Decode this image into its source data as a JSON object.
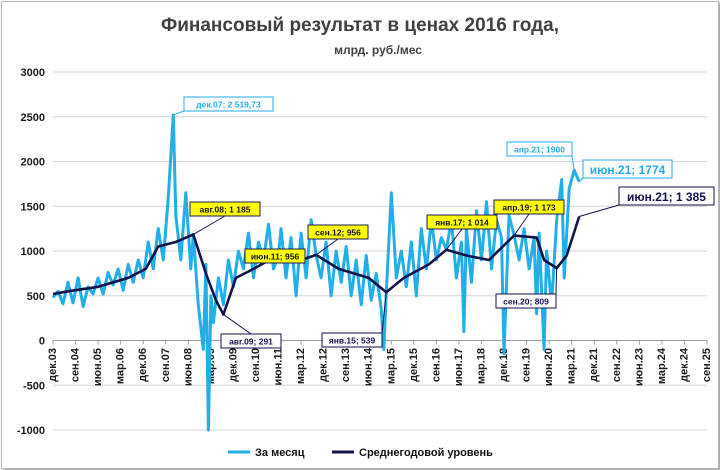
{
  "chart_data": {
    "type": "line",
    "title": "Финансовый результат в ценах 2016 года,",
    "subtitle": "млрд. руб./мес",
    "ylim": [
      -1000,
      3000
    ],
    "y_ticks": [
      "-1000",
      "-500",
      "0",
      "500",
      "1000",
      "1500",
      "2000",
      "2500",
      "3000"
    ],
    "x_tick_labels": [
      "дек.03",
      "сен.04",
      "июн.05",
      "мар.06",
      "дек.06",
      "сен.07",
      "июн.08",
      "мар.09",
      "дек.09",
      "сен.10",
      "июн.11",
      "мар.12",
      "дек.12",
      "сен.13",
      "июн.14",
      "мар.15",
      "дек.15",
      "сен.16",
      "июн.17",
      "мар.18",
      "дек.18",
      "сен.19",
      "июн.20",
      "мар.21",
      "дек.21",
      "сен.22",
      "июн.23",
      "мар.24",
      "дек.24",
      "сен.25"
    ],
    "x_range": [
      "2003-12",
      "2025-09"
    ],
    "grid": true,
    "legend_position": "bottom",
    "series": [
      {
        "name": "За месяц",
        "color": "#22aee6",
        "points": [
          [
            "2003-12",
            480
          ],
          [
            "2004-02",
            550
          ],
          [
            "2004-04",
            410
          ],
          [
            "2004-06",
            650
          ],
          [
            "2004-08",
            420
          ],
          [
            "2004-10",
            700
          ],
          [
            "2004-12",
            380
          ],
          [
            "2005-02",
            600
          ],
          [
            "2005-04",
            520
          ],
          [
            "2005-06",
            700
          ],
          [
            "2005-08",
            520
          ],
          [
            "2005-10",
            760
          ],
          [
            "2005-12",
            620
          ],
          [
            "2006-02",
            800
          ],
          [
            "2006-04",
            560
          ],
          [
            "2006-06",
            850
          ],
          [
            "2006-08",
            650
          ],
          [
            "2006-10",
            900
          ],
          [
            "2006-12",
            700
          ],
          [
            "2007-02",
            1100
          ],
          [
            "2007-04",
            800
          ],
          [
            "2007-06",
            1250
          ],
          [
            "2007-08",
            900
          ],
          [
            "2007-10",
            1600
          ],
          [
            "2007-12",
            2520
          ],
          [
            "2008-01",
            1400
          ],
          [
            "2008-03",
            900
          ],
          [
            "2008-05",
            1650
          ],
          [
            "2008-07",
            800
          ],
          [
            "2008-08",
            1185
          ],
          [
            "2008-10",
            400
          ],
          [
            "2008-12",
            -100
          ],
          [
            "2009-01",
            850
          ],
          [
            "2009-02",
            -1000
          ],
          [
            "2009-03",
            500
          ],
          [
            "2009-04",
            200
          ],
          [
            "2009-06",
            700
          ],
          [
            "2009-08",
            400
          ],
          [
            "2009-10",
            900
          ],
          [
            "2009-12",
            600
          ],
          [
            "2010-02",
            1000
          ],
          [
            "2010-04",
            800
          ],
          [
            "2010-06",
            1200
          ],
          [
            "2010-08",
            700
          ],
          [
            "2010-10",
            1100
          ],
          [
            "2010-12",
            900
          ],
          [
            "2011-02",
            1300
          ],
          [
            "2011-04",
            800
          ],
          [
            "2011-06",
            956
          ],
          [
            "2011-07",
            1250
          ],
          [
            "2011-09",
            700
          ],
          [
            "2011-11",
            1150
          ],
          [
            "2012-01",
            500
          ],
          [
            "2012-03",
            1200
          ],
          [
            "2012-05",
            700
          ],
          [
            "2012-07",
            1350
          ],
          [
            "2012-09",
            956
          ],
          [
            "2012-11",
            700
          ],
          [
            "2013-01",
            1100
          ],
          [
            "2013-03",
            500
          ],
          [
            "2013-05",
            1000
          ],
          [
            "2013-07",
            650
          ],
          [
            "2013-09",
            1050
          ],
          [
            "2013-11",
            500
          ],
          [
            "2014-01",
            900
          ],
          [
            "2014-03",
            400
          ],
          [
            "2014-05",
            950
          ],
          [
            "2014-07",
            450
          ],
          [
            "2014-09",
            750
          ],
          [
            "2014-11",
            350
          ],
          [
            "2014-12",
            -100
          ],
          [
            "2015-01",
            539
          ],
          [
            "2015-03",
            1650
          ],
          [
            "2015-05",
            700
          ],
          [
            "2015-07",
            1000
          ],
          [
            "2015-09",
            600
          ],
          [
            "2015-11",
            1100
          ],
          [
            "2016-01",
            500
          ],
          [
            "2016-03",
            1250
          ],
          [
            "2016-05",
            800
          ],
          [
            "2016-07",
            1350
          ],
          [
            "2016-09",
            900
          ],
          [
            "2016-11",
            1150
          ],
          [
            "2017-01",
            1014
          ],
          [
            "2017-03",
            1350
          ],
          [
            "2017-05",
            700
          ],
          [
            "2017-07",
            1100
          ],
          [
            "2017-08",
            100
          ],
          [
            "2017-09",
            1250
          ],
          [
            "2017-11",
            650
          ],
          [
            "2018-01",
            1450
          ],
          [
            "2018-03",
            900
          ],
          [
            "2018-05",
            1550
          ],
          [
            "2018-07",
            800
          ],
          [
            "2018-09",
            1350
          ],
          [
            "2018-11",
            1150
          ],
          [
            "2018-12",
            -150
          ],
          [
            "2019-02",
            1400
          ],
          [
            "2019-04",
            1173
          ],
          [
            "2019-06",
            900
          ],
          [
            "2019-08",
            1250
          ],
          [
            "2019-10",
            800
          ],
          [
            "2019-12",
            1150
          ],
          [
            "2020-01",
            300
          ],
          [
            "2020-02",
            1200
          ],
          [
            "2020-04",
            -100
          ],
          [
            "2020-05",
            1000
          ],
          [
            "2020-07",
            400
          ],
          [
            "2020-09",
            1350
          ],
          [
            "2020-11",
            1800
          ],
          [
            "2020-12",
            700
          ],
          [
            "2021-02",
            1700
          ],
          [
            "2021-04",
            1900
          ],
          [
            "2021-06",
            1774
          ]
        ]
      },
      {
        "name": "Среднегодовой уровень",
        "color": "#12124a",
        "points": [
          [
            "2003-12",
            520
          ],
          [
            "2004-06",
            550
          ],
          [
            "2005-06",
            600
          ],
          [
            "2006-06",
            700
          ],
          [
            "2007-01",
            800
          ],
          [
            "2007-06",
            1050
          ],
          [
            "2008-01",
            1100
          ],
          [
            "2008-08",
            1185
          ],
          [
            "2009-01",
            750
          ],
          [
            "2009-05",
            450
          ],
          [
            "2009-08",
            291
          ],
          [
            "2010-01",
            700
          ],
          [
            "2010-08",
            800
          ],
          [
            "2011-06",
            956
          ],
          [
            "2012-03",
            900
          ],
          [
            "2012-09",
            956
          ],
          [
            "2013-06",
            800
          ],
          [
            "2014-06",
            700
          ],
          [
            "2015-01",
            539
          ],
          [
            "2015-08",
            700
          ],
          [
            "2016-06",
            850
          ],
          [
            "2017-01",
            1014
          ],
          [
            "2017-09",
            950
          ],
          [
            "2018-06",
            900
          ],
          [
            "2019-04",
            1173
          ],
          [
            "2020-01",
            1150
          ],
          [
            "2020-04",
            900
          ],
          [
            "2020-09",
            809
          ],
          [
            "2021-01",
            950
          ],
          [
            "2021-06",
            1385
          ]
        ]
      }
    ],
    "annotations": [
      {
        "text": "дек.07;  2 519,73",
        "style": "light"
      },
      {
        "text": "авг.08; 1 185",
        "style": "yellow"
      },
      {
        "text": "июн.11; 956",
        "style": "yellow"
      },
      {
        "text": "сен.12; 956",
        "style": "yellow"
      },
      {
        "text": "янв.17; 1 014",
        "style": "yellow"
      },
      {
        "text": "апр.19; 1 173",
        "style": "yellow"
      },
      {
        "text": "апр.21; 1900",
        "style": "light"
      },
      {
        "text": "июн.21; 1774",
        "style": "light-big"
      },
      {
        "text": "июн.21; 1 385",
        "style": "dark-big"
      },
      {
        "text": "авг.09; 291",
        "style": "dark"
      },
      {
        "text": "янв.15; 539",
        "style": "dark"
      },
      {
        "text": "сен.20; 809",
        "style": "dark"
      }
    ]
  }
}
